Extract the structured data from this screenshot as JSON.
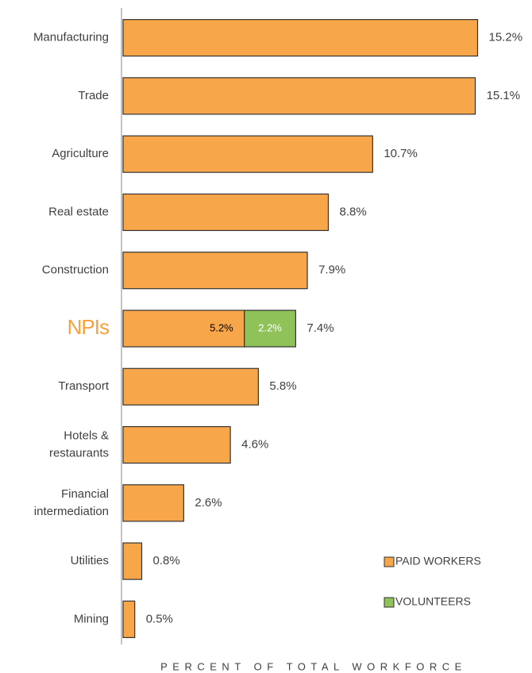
{
  "chart_data": {
    "type": "stacked-barh",
    "categories": [
      "Manufacturing",
      "Trade",
      "Agriculture",
      "Real estate",
      "Construction",
      "NPIs",
      "Transport",
      "Hotels &\nrestaurants",
      "Financial\nintermediation",
      "Utilities",
      "Mining"
    ],
    "series": [
      {
        "name": "PAID WORKERS",
        "color": "#f7a64a",
        "values": [
          15.2,
          15.1,
          10.7,
          8.8,
          7.9,
          5.2,
          5.8,
          4.6,
          2.6,
          0.8,
          0.5
        ],
        "value_labels": [
          null,
          null,
          null,
          null,
          null,
          "5.2%",
          null,
          null,
          null,
          null,
          null
        ]
      },
      {
        "name": "VOLUNTEERS",
        "color": "#8fc35a",
        "values": [
          null,
          null,
          null,
          null,
          null,
          2.2,
          null,
          null,
          null,
          null,
          null
        ],
        "value_labels": [
          null,
          null,
          null,
          null,
          null,
          "2.2%",
          null,
          null,
          null,
          null,
          null
        ]
      }
    ],
    "totals": {
      "values": [
        15.2,
        15.1,
        10.7,
        8.8,
        7.9,
        7.4,
        5.8,
        4.6,
        2.6,
        0.8,
        0.5
      ],
      "value_labels": [
        "15.2%",
        "15.1%",
        "10.7%",
        "8.8%",
        "7.9%",
        "7.4%",
        "5.8%",
        "4.6%",
        "2.6%",
        "0.8%",
        "0.5%"
      ]
    },
    "highlight": {
      "index": 5,
      "color": "#f7a13f"
    },
    "xlabel": "PERCENT OF TOTAL WORKFORCE",
    "xlim": [
      0,
      16
    ],
    "legend": "bottom right"
  }
}
